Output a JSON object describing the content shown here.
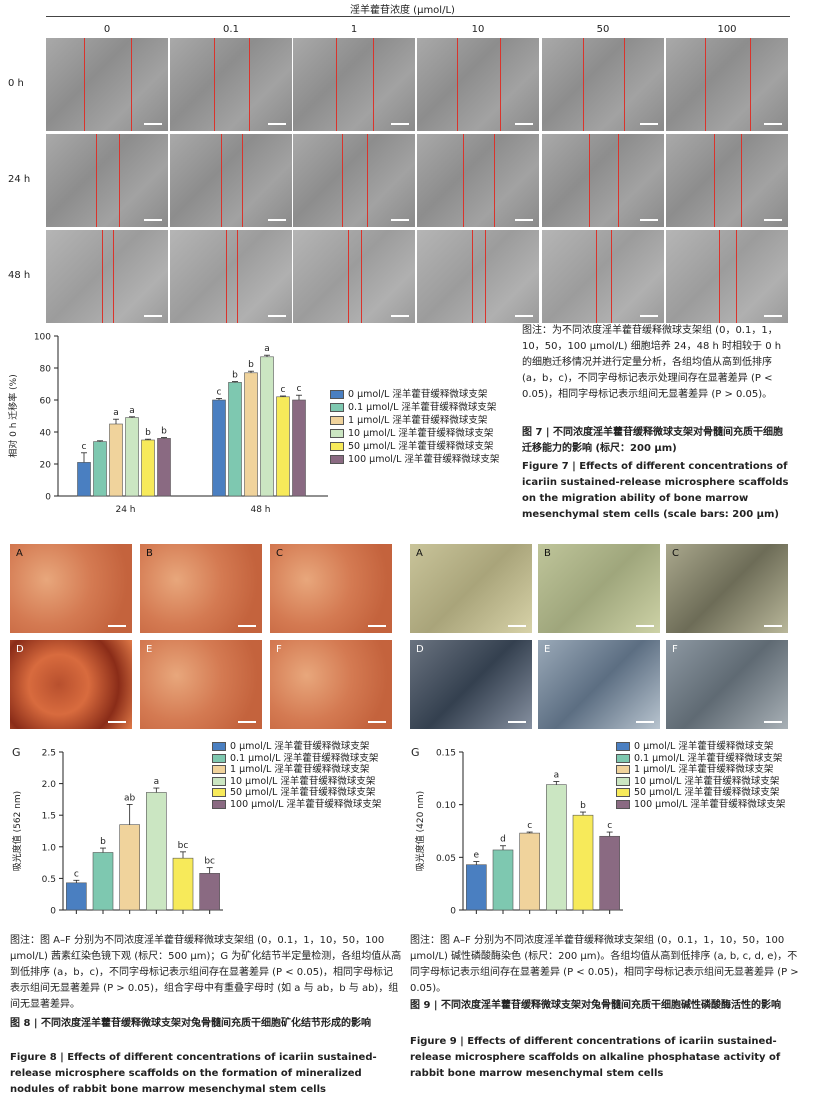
{
  "fig7": {
    "header_title": "淫羊藿苷浓度 (μmol/L)",
    "columns": [
      "0",
      "0.1",
      "1",
      "10",
      "50",
      "100"
    ],
    "rows": [
      "0 h",
      "24 h",
      "48 h"
    ],
    "scalebar_text": "200 μm",
    "caption_note": "图注：为不同浓度淫羊藿苷缓释微球支架组 (0，0.1，1，10，50，100 μmol/L) 细胞培养 24，48 h 时相较于 0 h 的细胞迁移情况并进行定量分析，各组均值从高到低排序 (a，b，c)，不同字母标记表示处理间存在显著差异 (P < 0.05)，相同字母标记表示组间无显著差异 (P > 0.05)。",
    "caption_cn": "图 7 | 不同浓度淫羊藿苷缓释微球支架对骨髓间充质干细胞迁移能力的影响 (标尺：200 μm)",
    "caption_en": "Figure 7 | Effects of different concentrations of icariin sustained-release microsphere scaffolds on the migration ability of bone marrow mesenchymal stem cells (scale bars: 200 μm)"
  },
  "legend": [
    "0 μmol/L 淫羊藿苷缓释微球支架",
    "0.1 μmol/L 淫羊藿苷缓释微球支架",
    "1 μmol/L 淫羊藿苷缓释微球支架",
    "10 μmol/L 淫羊藿苷缓释微球支架",
    "50 μmol/L 淫羊藿苷缓释微球支架",
    "100 μmol/L 淫羊藿苷缓释微球支架"
  ],
  "colors": [
    "#4a7fc1",
    "#7ec8b0",
    "#f0d39c",
    "#cbe6c2",
    "#f7ea5a",
    "#8a6a82"
  ],
  "chart_data": [
    {
      "type": "bar",
      "ylabel": "相对 0 h 迁移率 (%)",
      "categories": [
        "24 h",
        "48 h"
      ],
      "ylim": [
        0,
        100
      ],
      "yticks": [
        0,
        20,
        40,
        60,
        80,
        100
      ],
      "series": [
        {
          "name": "0 μmol/L 淫羊藿苷缓释微球支架",
          "values": [
            21,
            60
          ],
          "errors": [
            6,
            1
          ],
          "letters": [
            "c",
            "c"
          ]
        },
        {
          "name": "0.1 μmol/L 淫羊藿苷缓释微球支架",
          "values": [
            34,
            71
          ],
          "errors": [
            0.5,
            0.5
          ],
          "letters": [
            "",
            "b"
          ]
        },
        {
          "name": "1 μmol/L 淫羊藿苷缓释微球支架",
          "values": [
            45,
            77
          ],
          "errors": [
            3,
            1
          ],
          "letters": [
            "a",
            "b"
          ]
        },
        {
          "name": "10 μmol/L 淫羊藿苷缓释微球支架",
          "values": [
            49,
            87
          ],
          "errors": [
            0.5,
            1
          ],
          "letters": [
            "a",
            "a"
          ]
        },
        {
          "name": "50 μmol/L 淫羊藿苷缓释微球支架",
          "values": [
            35,
            62
          ],
          "errors": [
            0.5,
            0.5
          ],
          "letters": [
            "b",
            "c"
          ]
        },
        {
          "name": "100 μmol/L 淫羊藿苷缓释微球支架",
          "values": [
            36,
            60
          ],
          "errors": [
            0.5,
            3
          ],
          "letters": [
            "b",
            "c"
          ]
        }
      ]
    },
    {
      "type": "bar",
      "panel_label": "G",
      "ylabel": "吸光度值 (562 nm)",
      "categories": [
        "0",
        "0.1",
        "1",
        "10",
        "50",
        "100"
      ],
      "ylim": [
        0,
        2.5
      ],
      "yticks": [
        0,
        0.5,
        1.0,
        1.5,
        2.0,
        2.5
      ],
      "ytick_labels": [
        "0",
        "0.5",
        "1.0",
        "1.5",
        "2.0",
        "2.5"
      ],
      "values": [
        0.43,
        0.91,
        1.35,
        1.86,
        0.82,
        0.58
      ],
      "errors": [
        0.04,
        0.07,
        0.32,
        0.07,
        0.1,
        0.09
      ],
      "letters": [
        "c",
        "b",
        "ab",
        "a",
        "bc",
        "bc"
      ]
    },
    {
      "type": "bar",
      "panel_label": "G",
      "ylabel": "吸光度值 (420 nm)",
      "categories": [
        "0",
        "0.1",
        "1",
        "10",
        "50",
        "100"
      ],
      "ylim": [
        0,
        0.15
      ],
      "yticks": [
        0,
        0.05,
        0.1,
        0.15
      ],
      "ytick_labels": [
        "0",
        "0.05",
        "0.10",
        "0.15"
      ],
      "values": [
        0.043,
        0.057,
        0.073,
        0.119,
        0.09,
        0.07
      ],
      "errors": [
        0.003,
        0.004,
        0.001,
        0.003,
        0.003,
        0.004
      ],
      "letters": [
        "e",
        "d",
        "c",
        "a",
        "b",
        "c"
      ]
    }
  ],
  "fig8": {
    "panels": [
      "A",
      "B",
      "C",
      "D",
      "E",
      "F"
    ],
    "scalebar_text": "500 μm",
    "caption_note": "图注：图 A–F 分别为不同浓度淫羊藿苷缓释微球支架组 (0，0.1，1，10，50，100 μmol/L) 茜素红染色镜下观 (标尺：500 μm)；G 为矿化结节半定量检测，各组均值从高到低排序 (a，b，c)，不同字母标记表示组间存在显著差异 (P < 0.05)，相同字母标记表示组间无显著差异 (P > 0.05)，组合字母中有重叠字母时 (如 a 与 ab，b 与 ab)，组间无显著差异。",
    "caption_cn": "图 8 | 不同浓度淫羊藿苷缓释微球支架对兔骨髓间充质干细胞矿化结节形成的影响",
    "caption_en": "Figure 8 | Effects of different concentrations of icariin sustained-release microsphere scaffolds on the formation of mineralized nodules of rabbit bone marrow mesenchymal stem cells"
  },
  "fig9": {
    "panels": [
      "A",
      "B",
      "C",
      "D",
      "E",
      "F"
    ],
    "scalebar_text": "200 μm",
    "caption_note": "图注：图 A–F 分别为不同浓度淫羊藿苷缓释微球支架组 (0，0.1，1，10，50，100 μmol/L) 碱性磷酸酶染色 (标尺：200 μm)。各组均值从高到低排序 (a, b, c, d, e)，不同字母标记表示组间存在显著差异 (P < 0.05)，相同字母标记表示组间无显著差异 (P > 0.05)。",
    "caption_cn": "图 9 | 不同浓度淫羊藿苷缓释微球支架对兔骨髓间充质干细胞碱性磷酸酶活性的影响",
    "caption_en": "Figure 9 | Effects of different concentrations of icariin sustained-release microsphere scaffolds on alkaline phosphatase activity of rabbit bone marrow mesenchymal stem cells"
  }
}
